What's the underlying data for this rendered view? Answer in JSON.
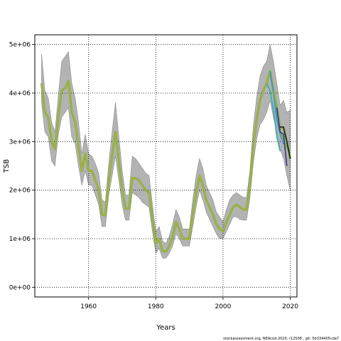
{
  "footer": "stockassessment.org, NEAcod-2020, r12508 , git: 5b334405cda7",
  "chart_data": {
    "type": "line",
    "xlabel": "Years",
    "ylabel": "TSB",
    "xlim": [
      1944,
      2022
    ],
    "ylim": [
      -200000,
      5200000
    ],
    "x_ticks": [
      1960,
      1980,
      2000,
      2020
    ],
    "x_tick_labels": [
      "1960",
      "1980",
      "2000",
      "2020"
    ],
    "y_ticks": [
      0,
      1000000,
      2000000,
      3000000,
      4000000,
      5000000
    ],
    "y_tick_labels": [
      "0e+00",
      "1e+06",
      "2e+06",
      "3e+06",
      "4e+06",
      "5e+06"
    ],
    "grid": "dotted at tick positions",
    "colors": {
      "band": "#b3b3b3",
      "band_edge": "#8a8a8a",
      "main_line": "#000000",
      "retro": [
        "#2bb0a8",
        "#3d8fd6",
        "#7ab648",
        "#c5a83a",
        "#3a2f8f",
        "#333333"
      ]
    },
    "series": [
      {
        "x": [
          1946,
          1947,
          1948,
          1949,
          1950,
          1951,
          1952,
          1953,
          1954,
          1955,
          1956,
          1957,
          1958,
          1959,
          1960,
          1961,
          1962,
          1963,
          1964,
          1965,
          1966,
          1967,
          1968,
          1969,
          1970,
          1971,
          1972,
          1973,
          1974,
          1975,
          1976,
          1977,
          1978,
          1979,
          1980,
          1981,
          1982,
          1983,
          1984,
          1985,
          1986,
          1987,
          1988,
          1989,
          1990,
          1991,
          1992,
          1993,
          1994,
          1995,
          1996,
          1997,
          1998,
          1999,
          2000,
          2001,
          2002,
          2003,
          2004,
          2005,
          2006,
          2007,
          2008,
          2009,
          2010,
          2011,
          2012,
          2013,
          2014,
          2015,
          2016,
          2017,
          2018,
          2019,
          2020
        ],
        "values": [
          4200000,
          3600000,
          3500000,
          3000000,
          2850000,
          3500000,
          4050000,
          4100000,
          4250000,
          3600000,
          3400000,
          2900000,
          2400000,
          2750000,
          2400000,
          2400000,
          2200000,
          2000000,
          1500000,
          1480000,
          2200000,
          2700000,
          3200000,
          2600000,
          2000000,
          1620000,
          1620000,
          2250000,
          2250000,
          2200000,
          2100000,
          2000000,
          1950000,
          1400000,
          900000,
          1000000,
          750000,
          730000,
          850000,
          1050000,
          1350000,
          1200000,
          1000000,
          1000000,
          1000000,
          1500000,
          1950000,
          2300000,
          2100000,
          1800000,
          1650000,
          1500000,
          1300000,
          1200000,
          1150000,
          1350000,
          1500000,
          1650000,
          1700000,
          1650000,
          1600000,
          1600000,
          2100000,
          2900000,
          3450000,
          3850000,
          4050000,
          4200000,
          4450000,
          4050000,
          3700000,
          3300000,
          3250000,
          3000000,
          2650000
        ],
        "lower": [
          3800000,
          3200000,
          3100000,
          2600000,
          2500000,
          3150000,
          3500000,
          3600000,
          3700000,
          3100000,
          2950000,
          2500000,
          2100000,
          2400000,
          2100000,
          2100000,
          1900000,
          1700000,
          1250000,
          1250000,
          1900000,
          2300000,
          2700000,
          2200000,
          1700000,
          1380000,
          1380000,
          1950000,
          1900000,
          1850000,
          1750000,
          1700000,
          1650000,
          1150000,
          700000,
          800000,
          600000,
          600000,
          700000,
          850000,
          1100000,
          1000000,
          850000,
          850000,
          850000,
          1250000,
          1650000,
          2000000,
          1800000,
          1550000,
          1400000,
          1250000,
          1100000,
          1000000,
          1000000,
          1150000,
          1300000,
          1450000,
          1450000,
          1400000,
          1380000,
          1380000,
          1850000,
          2550000,
          3050000,
          3350000,
          3450000,
          3600000,
          3850000,
          3500000,
          3200000,
          2850000,
          2650000,
          2300000,
          2000000
        ],
        "upper": [
          4800000,
          4050000,
          3900000,
          3400000,
          3200000,
          3950000,
          4650000,
          4750000,
          4850000,
          4200000,
          3900000,
          3400000,
          2750000,
          3150000,
          2750000,
          2700000,
          2550000,
          2350000,
          1800000,
          1750000,
          2550000,
          3200000,
          3800000,
          3100000,
          2400000,
          1900000,
          1900000,
          2700000,
          2650000,
          2550000,
          2450000,
          2350000,
          2300000,
          1700000,
          1150000,
          1250000,
          950000,
          900000,
          1050000,
          1300000,
          1600000,
          1450000,
          1200000,
          1200000,
          1200000,
          1800000,
          2300000,
          2650000,
          2450000,
          2100000,
          1950000,
          1800000,
          1550000,
          1450000,
          1350000,
          1600000,
          1800000,
          1900000,
          1950000,
          1900000,
          1850000,
          1850000,
          2400000,
          3300000,
          3900000,
          4350000,
          4550000,
          4650000,
          5000000,
          4650000,
          4200000,
          3750000,
          3850000,
          3600000,
          3650000
        ]
      },
      {
        "x": [
          2013,
          2014,
          2015,
          2016,
          2017
        ],
        "values": [
          4200000,
          4050000,
          3650000,
          3100000,
          2800000
        ]
      },
      {
        "x": [
          2014,
          2015,
          2016,
          2017,
          2018
        ],
        "values": [
          4450000,
          4000000,
          3450000,
          3150000,
          2950000
        ]
      },
      {
        "x": [
          2015,
          2016,
          2017,
          2018,
          2019
        ],
        "values": [
          4050000,
          3700000,
          3200000,
          3050000,
          2850000
        ]
      },
      {
        "x": [
          2016,
          2017,
          2018,
          2019
        ],
        "values": [
          3700000,
          3200000,
          3150000,
          2500000
        ]
      },
      {
        "x": [
          2017,
          2018,
          2019,
          2020
        ],
        "values": [
          3300000,
          3300000,
          3000000,
          2650000
        ]
      }
    ]
  }
}
